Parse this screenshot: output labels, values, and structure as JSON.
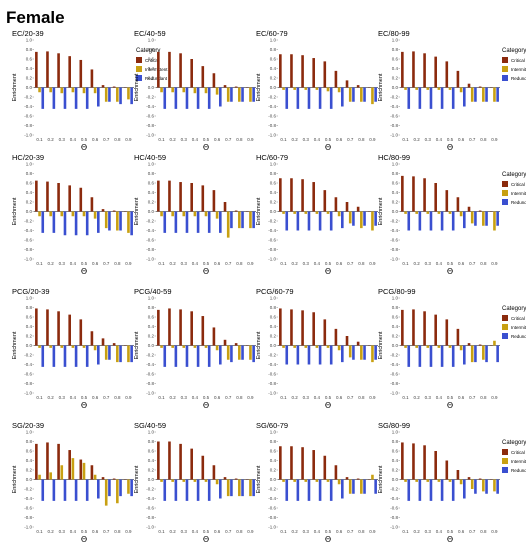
{
  "page_title": "Female",
  "colors": {
    "critical": "#8b2a0d",
    "intermittent": "#c8a012",
    "redundant": "#3a4fd0",
    "axis": "#000000"
  },
  "chart_data": [
    {
      "type": "bar",
      "title": "EC/20-39",
      "xlabel": "Θ",
      "ylabel": "Enrichment",
      "ylim": [
        -1,
        1
      ],
      "categories": [
        "0.1",
        "0.2",
        "0.3",
        "0.4",
        "0.5",
        "0.6",
        "0.7",
        "0.8",
        "0.9"
      ],
      "series": [
        {
          "name": "Critical",
          "values": [
            0.75,
            0.76,
            0.72,
            0.66,
            0.58,
            0.38,
            0.05,
            0.02,
            0.0
          ]
        },
        {
          "name": "Intermittent",
          "values": [
            -0.1,
            -0.1,
            -0.12,
            -0.1,
            -0.12,
            -0.12,
            -0.3,
            -0.3,
            -0.25
          ]
        },
        {
          "name": "Redundant",
          "values": [
            -0.45,
            -0.45,
            -0.45,
            -0.45,
            -0.45,
            -0.4,
            -0.3,
            -0.35,
            -0.35
          ]
        }
      ],
      "legend": {
        "title": "Category",
        "entries": [
          "Critical",
          "Intermittent",
          "Redundant"
        ]
      }
    },
    {
      "type": "bar",
      "title": "EC/40-59",
      "xlabel": "Θ",
      "ylabel": "Enrichment",
      "ylim": [
        -1,
        1
      ],
      "categories": [
        "0.1",
        "0.2",
        "0.3",
        "0.4",
        "0.5",
        "0.6",
        "0.7",
        "0.8",
        "0.9"
      ],
      "series": [
        {
          "name": "Critical",
          "values": [
            0.75,
            0.75,
            0.72,
            0.6,
            0.45,
            0.3,
            0.05,
            0.02,
            0.0
          ]
        },
        {
          "name": "Intermittent",
          "values": [
            -0.1,
            -0.1,
            -0.1,
            -0.12,
            -0.12,
            -0.15,
            -0.3,
            -0.3,
            -0.3
          ]
        },
        {
          "name": "Redundant",
          "values": [
            -0.45,
            -0.45,
            -0.45,
            -0.45,
            -0.45,
            -0.4,
            -0.3,
            -0.3,
            -0.3
          ]
        }
      ]
    },
    {
      "type": "bar",
      "title": "EC/60-79",
      "xlabel": "Θ",
      "ylabel": "Enrichment",
      "ylim": [
        -1,
        1
      ],
      "categories": [
        "0.1",
        "0.2",
        "0.3",
        "0.4",
        "0.5",
        "0.6",
        "0.7",
        "0.8",
        "0.9"
      ],
      "series": [
        {
          "name": "Critical",
          "values": [
            0.7,
            0.7,
            0.68,
            0.62,
            0.55,
            0.35,
            0.15,
            0.05,
            0.0
          ]
        },
        {
          "name": "Intermittent",
          "values": [
            -0.05,
            -0.05,
            -0.05,
            -0.05,
            -0.08,
            -0.1,
            -0.3,
            -0.3,
            -0.35
          ]
        },
        {
          "name": "Redundant",
          "values": [
            -0.45,
            -0.45,
            -0.45,
            -0.45,
            -0.45,
            -0.4,
            -0.3,
            -0.3,
            -0.3
          ]
        }
      ]
    },
    {
      "type": "bar",
      "title": "EC/80-99",
      "xlabel": "Θ",
      "ylabel": "Enrichment",
      "ylim": [
        -1,
        1
      ],
      "categories": [
        "0.1",
        "0.2",
        "0.3",
        "0.4",
        "0.5",
        "0.6",
        "0.7",
        "0.8",
        "0.9"
      ],
      "series": [
        {
          "name": "Critical",
          "values": [
            0.75,
            0.76,
            0.72,
            0.65,
            0.55,
            0.35,
            0.08,
            0.02,
            0.0
          ]
        },
        {
          "name": "Intermittent",
          "values": [
            -0.05,
            -0.05,
            -0.05,
            -0.05,
            -0.05,
            -0.1,
            -0.3,
            -0.3,
            -0.3
          ]
        },
        {
          "name": "Redundant",
          "values": [
            -0.45,
            -0.45,
            -0.45,
            -0.45,
            -0.45,
            -0.4,
            -0.3,
            -0.3,
            -0.3
          ]
        }
      ],
      "legend": {
        "title": "Category",
        "entries": [
          "Critical",
          "Intermittent",
          "Redundant"
        ]
      }
    },
    {
      "type": "bar",
      "title": "HC/20-39",
      "xlabel": "Θ",
      "ylabel": "Enrichment",
      "ylim": [
        -1,
        1
      ],
      "categories": [
        "0.1",
        "0.2",
        "0.3",
        "0.4",
        "0.5",
        "0.6",
        "0.7",
        "0.8",
        "0.9"
      ],
      "series": [
        {
          "name": "Critical",
          "values": [
            0.65,
            0.63,
            0.6,
            0.55,
            0.5,
            0.3,
            0.05,
            0.02,
            0.0
          ]
        },
        {
          "name": "Intermittent",
          "values": [
            -0.1,
            -0.1,
            -0.1,
            -0.1,
            -0.1,
            -0.15,
            -0.35,
            -0.4,
            -0.45
          ]
        },
        {
          "name": "Redundant",
          "values": [
            -0.45,
            -0.45,
            -0.5,
            -0.5,
            -0.5,
            -0.45,
            -0.4,
            -0.4,
            -0.5
          ]
        }
      ]
    },
    {
      "type": "bar",
      "title": "HC/40-59",
      "xlabel": "Θ",
      "ylabel": "Enrichment",
      "ylim": [
        -1,
        1
      ],
      "categories": [
        "0.1",
        "0.2",
        "0.3",
        "0.4",
        "0.5",
        "0.6",
        "0.7",
        "0.8",
        "0.9"
      ],
      "series": [
        {
          "name": "Critical",
          "values": [
            0.65,
            0.65,
            0.62,
            0.6,
            0.55,
            0.45,
            0.2,
            0.02,
            0.0
          ]
        },
        {
          "name": "Intermittent",
          "values": [
            -0.1,
            -0.1,
            -0.1,
            -0.1,
            -0.1,
            -0.15,
            -0.55,
            -0.35,
            -0.35
          ]
        },
        {
          "name": "Redundant",
          "values": [
            -0.45,
            -0.45,
            -0.45,
            -0.45,
            -0.45,
            -0.45,
            -0.35,
            -0.35,
            -0.35
          ]
        }
      ]
    },
    {
      "type": "bar",
      "title": "HC/60-79",
      "xlabel": "Θ",
      "ylabel": "Enrichment",
      "ylim": [
        -1,
        1
      ],
      "categories": [
        "0.1",
        "0.2",
        "0.3",
        "0.4",
        "0.5",
        "0.6",
        "0.7",
        "0.8",
        "0.9"
      ],
      "series": [
        {
          "name": "Critical",
          "values": [
            0.7,
            0.7,
            0.68,
            0.62,
            0.45,
            0.3,
            0.2,
            0.1,
            0.0
          ]
        },
        {
          "name": "Intermittent",
          "values": [
            -0.05,
            -0.05,
            -0.05,
            -0.05,
            -0.05,
            -0.1,
            -0.25,
            -0.35,
            -0.4
          ]
        },
        {
          "name": "Redundant",
          "values": [
            -0.4,
            -0.4,
            -0.4,
            -0.4,
            -0.4,
            -0.35,
            -0.3,
            -0.3,
            -0.3
          ]
        }
      ]
    },
    {
      "type": "bar",
      "title": "HC/80-99",
      "xlabel": "Θ",
      "ylabel": "Enrichment",
      "ylim": [
        -1,
        1
      ],
      "categories": [
        "0.1",
        "0.2",
        "0.3",
        "0.4",
        "0.5",
        "0.6",
        "0.7",
        "0.8",
        "0.9"
      ],
      "series": [
        {
          "name": "Critical",
          "values": [
            0.75,
            0.74,
            0.7,
            0.6,
            0.45,
            0.3,
            0.1,
            0.02,
            0.0
          ]
        },
        {
          "name": "Intermittent",
          "values": [
            -0.05,
            -0.05,
            -0.05,
            -0.05,
            -0.05,
            -0.1,
            -0.25,
            -0.3,
            -0.4
          ]
        },
        {
          "name": "Redundant",
          "values": [
            -0.4,
            -0.4,
            -0.4,
            -0.4,
            -0.4,
            -0.35,
            -0.3,
            -0.3,
            -0.3
          ]
        }
      ],
      "legend": {
        "title": "Category",
        "entries": [
          "Critical",
          "Intermittent",
          "Redundant"
        ]
      }
    },
    {
      "type": "bar",
      "title": "PCG/20-39",
      "xlabel": "Θ",
      "ylabel": "Enrichment",
      "ylim": [
        -1,
        1
      ],
      "categories": [
        "0.1",
        "0.2",
        "0.3",
        "0.4",
        "0.5",
        "0.6",
        "0.7",
        "0.8",
        "0.9"
      ],
      "series": [
        {
          "name": "Critical",
          "values": [
            0.78,
            0.76,
            0.72,
            0.65,
            0.55,
            0.3,
            0.15,
            0.05,
            0.0
          ]
        },
        {
          "name": "Intermittent",
          "values": [
            -0.05,
            -0.05,
            -0.05,
            -0.05,
            -0.05,
            -0.1,
            -0.3,
            -0.35,
            -0.35
          ]
        },
        {
          "name": "Redundant",
          "values": [
            -0.45,
            -0.45,
            -0.45,
            -0.45,
            -0.45,
            -0.4,
            -0.3,
            -0.35,
            -0.35
          ]
        }
      ]
    },
    {
      "type": "bar",
      "title": "PCG/40-59",
      "xlabel": "Θ",
      "ylabel": "Enrichment",
      "ylim": [
        -1,
        1
      ],
      "categories": [
        "0.1",
        "0.2",
        "0.3",
        "0.4",
        "0.5",
        "0.6",
        "0.7",
        "0.8",
        "0.9"
      ],
      "series": [
        {
          "name": "Critical",
          "values": [
            0.75,
            0.78,
            0.76,
            0.72,
            0.62,
            0.38,
            0.12,
            0.05,
            0.0
          ]
        },
        {
          "name": "Intermittent",
          "values": [
            -0.05,
            -0.05,
            -0.05,
            -0.05,
            -0.05,
            -0.1,
            -0.3,
            -0.3,
            -0.3
          ]
        },
        {
          "name": "Redundant",
          "values": [
            -0.45,
            -0.45,
            -0.45,
            -0.45,
            -0.45,
            -0.4,
            -0.35,
            -0.3,
            -0.35
          ]
        }
      ]
    },
    {
      "type": "bar",
      "title": "PCG/60-79",
      "xlabel": "Θ",
      "ylabel": "Enrichment",
      "ylim": [
        -1,
        1
      ],
      "categories": [
        "0.1",
        "0.2",
        "0.3",
        "0.4",
        "0.5",
        "0.6",
        "0.7",
        "0.8",
        "0.9"
      ],
      "series": [
        {
          "name": "Critical",
          "values": [
            0.78,
            0.76,
            0.74,
            0.7,
            0.55,
            0.35,
            0.2,
            0.08,
            0.0
          ]
        },
        {
          "name": "Intermittent",
          "values": [
            -0.05,
            -0.05,
            -0.05,
            -0.05,
            -0.05,
            -0.1,
            -0.25,
            -0.3,
            -0.35
          ]
        },
        {
          "name": "Redundant",
          "values": [
            -0.4,
            -0.4,
            -0.4,
            -0.4,
            -0.4,
            -0.35,
            -0.3,
            -0.3,
            -0.3
          ]
        }
      ]
    },
    {
      "type": "bar",
      "title": "PCG/80-99",
      "xlabel": "Θ",
      "ylabel": "Enrichment",
      "ylim": [
        -1,
        1
      ],
      "categories": [
        "0.1",
        "0.2",
        "0.3",
        "0.4",
        "0.5",
        "0.6",
        "0.7",
        "0.8",
        "0.9"
      ],
      "series": [
        {
          "name": "Critical",
          "values": [
            0.75,
            0.76,
            0.72,
            0.65,
            0.55,
            0.35,
            0.05,
            0.02,
            0.0
          ]
        },
        {
          "name": "Intermittent",
          "values": [
            -0.05,
            -0.05,
            -0.05,
            -0.05,
            -0.05,
            -0.1,
            -0.35,
            -0.3,
            0.1
          ]
        },
        {
          "name": "Redundant",
          "values": [
            -0.45,
            -0.45,
            -0.45,
            -0.45,
            -0.45,
            -0.4,
            -0.35,
            -0.35,
            -0.35
          ]
        }
      ],
      "legend": {
        "title": "Category",
        "entries": [
          "Critical",
          "Intermittent",
          "Redundant"
        ]
      }
    },
    {
      "type": "bar",
      "title": "SG/20-39",
      "xlabel": "Θ",
      "ylabel": "Enrichment",
      "ylim": [
        -1,
        1
      ],
      "categories": [
        "0.1",
        "0.2",
        "0.3",
        "0.4",
        "0.5",
        "0.6",
        "0.7",
        "0.8",
        "0.9"
      ],
      "series": [
        {
          "name": "Critical",
          "values": [
            0.75,
            0.78,
            0.75,
            0.62,
            0.42,
            0.3,
            0.05,
            0.02,
            0.0
          ]
        },
        {
          "name": "Intermittent",
          "values": [
            0.1,
            0.15,
            0.3,
            0.45,
            0.35,
            0.1,
            -0.55,
            -0.5,
            -0.3
          ]
        },
        {
          "name": "Redundant",
          "values": [
            -0.45,
            -0.45,
            -0.45,
            -0.45,
            -0.45,
            -0.4,
            -0.35,
            -0.35,
            -0.35
          ]
        }
      ]
    },
    {
      "type": "bar",
      "title": "SG/40-59",
      "xlabel": "Θ",
      "ylabel": "Enrichment",
      "ylim": [
        -1,
        1
      ],
      "categories": [
        "0.1",
        "0.2",
        "0.3",
        "0.4",
        "0.5",
        "0.6",
        "0.7",
        "0.8",
        "0.9"
      ],
      "series": [
        {
          "name": "Critical",
          "values": [
            0.8,
            0.8,
            0.75,
            0.65,
            0.5,
            0.3,
            0.05,
            0.02,
            0.0
          ]
        },
        {
          "name": "Intermittent",
          "values": [
            -0.05,
            -0.05,
            -0.05,
            -0.05,
            -0.05,
            -0.1,
            -0.35,
            -0.35,
            -0.35
          ]
        },
        {
          "name": "Redundant",
          "values": [
            -0.45,
            -0.45,
            -0.45,
            -0.45,
            -0.45,
            -0.4,
            -0.35,
            -0.35,
            -0.35
          ]
        }
      ]
    },
    {
      "type": "bar",
      "title": "SG/60-79",
      "xlabel": "Θ",
      "ylabel": "Enrichment",
      "ylim": [
        -1,
        1
      ],
      "categories": [
        "0.1",
        "0.2",
        "0.3",
        "0.4",
        "0.5",
        "0.6",
        "0.7",
        "0.8",
        "0.9"
      ],
      "series": [
        {
          "name": "Critical",
          "values": [
            0.7,
            0.7,
            0.68,
            0.62,
            0.5,
            0.3,
            0.05,
            0.02,
            0.0
          ]
        },
        {
          "name": "Intermittent",
          "values": [
            -0.05,
            -0.05,
            -0.05,
            -0.05,
            -0.05,
            -0.1,
            -0.3,
            -0.3,
            0.1
          ]
        },
        {
          "name": "Redundant",
          "values": [
            -0.45,
            -0.45,
            -0.45,
            -0.45,
            -0.45,
            -0.4,
            -0.3,
            -0.3,
            -0.3
          ]
        }
      ]
    },
    {
      "type": "bar",
      "title": "SG/80-99",
      "xlabel": "Θ",
      "ylabel": "Enrichment",
      "ylim": [
        -1,
        1
      ],
      "categories": [
        "0.1",
        "0.2",
        "0.3",
        "0.4",
        "0.5",
        "0.6",
        "0.7",
        "0.8",
        "0.9"
      ],
      "series": [
        {
          "name": "Critical",
          "values": [
            0.78,
            0.76,
            0.72,
            0.6,
            0.4,
            0.2,
            0.05,
            0.02,
            0.0
          ]
        },
        {
          "name": "Intermittent",
          "values": [
            -0.05,
            -0.05,
            -0.05,
            -0.05,
            -0.05,
            -0.1,
            -0.2,
            -0.25,
            -0.25
          ]
        },
        {
          "name": "Redundant",
          "values": [
            -0.45,
            -0.45,
            -0.45,
            -0.45,
            -0.45,
            -0.4,
            -0.3,
            -0.3,
            -0.3
          ]
        }
      ],
      "legend": {
        "title": "Category",
        "entries": [
          "Critical",
          "Intermittent",
          "Redundant"
        ]
      }
    }
  ]
}
